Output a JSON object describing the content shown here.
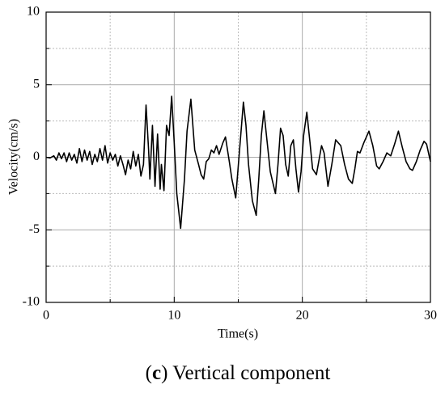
{
  "chart_data": {
    "type": "line",
    "xlabel": "Time(s)",
    "ylabel": "Velocity(cm/s)",
    "caption": [
      "(",
      "c",
      ") Vertical component"
    ],
    "x": [
      0,
      0.3,
      0.6,
      0.8,
      1.0,
      1.2,
      1.4,
      1.6,
      1.8,
      2.0,
      2.2,
      2.4,
      2.6,
      2.8,
      3.0,
      3.2,
      3.4,
      3.6,
      3.8,
      4.0,
      4.2,
      4.4,
      4.6,
      4.8,
      5.0,
      5.2,
      5.4,
      5.6,
      5.8,
      6.0,
      6.2,
      6.4,
      6.6,
      6.8,
      7.0,
      7.2,
      7.4,
      7.6,
      7.8,
      8.0,
      8.1,
      8.3,
      8.5,
      8.7,
      8.9,
      9.0,
      9.2,
      9.4,
      9.6,
      9.8,
      10.0,
      10.2,
      10.5,
      10.8,
      11.0,
      11.3,
      11.6,
      11.9,
      12.1,
      12.3,
      12.5,
      12.7,
      12.9,
      13.1,
      13.3,
      13.5,
      13.8,
      14.0,
      14.3,
      14.5,
      14.8,
      15.1,
      15.4,
      15.6,
      15.8,
      16.1,
      16.4,
      16.6,
      16.8,
      17.0,
      17.2,
      17.5,
      17.9,
      18.1,
      18.3,
      18.5,
      18.7,
      18.9,
      19.1,
      19.3,
      19.5,
      19.7,
      19.9,
      20.1,
      20.35,
      20.6,
      20.8,
      21.1,
      21.3,
      21.5,
      21.7,
      22.0,
      22.3,
      22.6,
      22.8,
      23.0,
      23.3,
      23.6,
      23.9,
      24.1,
      24.3,
      24.5,
      24.8,
      25.2,
      25.5,
      25.8,
      26.0,
      26.3,
      26.6,
      26.9,
      27.2,
      27.5,
      27.8,
      28.1,
      28.4,
      28.6,
      28.9,
      29.2,
      29.5,
      29.7,
      30.0
    ],
    "series": [
      {
        "name": "Velocity",
        "color": "#000000",
        "values": [
          0,
          -0.05,
          0.1,
          -0.2,
          0.3,
          -0.1,
          0.3,
          -0.3,
          0.3,
          -0.2,
          0.2,
          -0.4,
          0.6,
          -0.3,
          0.5,
          -0.2,
          0.4,
          -0.5,
          0.2,
          -0.3,
          0.6,
          -0.2,
          0.8,
          -0.4,
          0.3,
          -0.2,
          0.2,
          -0.6,
          0.1,
          -0.5,
          -1.2,
          -0.2,
          -0.8,
          0.4,
          -0.6,
          0.2,
          -1.3,
          -0.5,
          3.6,
          0.5,
          -1.5,
          2.2,
          -2.0,
          1.6,
          -2.2,
          -0.5,
          -2.3,
          2.2,
          1.5,
          4.2,
          1.0,
          -2.5,
          -4.9,
          -1.5,
          1.8,
          4.0,
          0.5,
          -0.5,
          -1.2,
          -1.5,
          -0.3,
          -0.1,
          0.5,
          0.3,
          0.8,
          0.2,
          1.0,
          1.4,
          -0.3,
          -1.5,
          -2.8,
          0.5,
          3.8,
          2.2,
          -0.5,
          -3.0,
          -4.0,
          -1.5,
          1.5,
          3.2,
          1.5,
          -1.0,
          -2.5,
          -0.5,
          2.0,
          1.5,
          -0.5,
          -1.3,
          0.8,
          1.2,
          -0.8,
          -2.4,
          -1.0,
          1.5,
          3.1,
          1.0,
          -0.8,
          -1.2,
          -0.2,
          0.8,
          0.3,
          -2.0,
          -0.5,
          1.2,
          1.0,
          0.8,
          -0.5,
          -1.5,
          -1.8,
          -0.8,
          0.4,
          0.3,
          1.0,
          1.8,
          0.8,
          -0.6,
          -0.8,
          -0.3,
          0.3,
          0.1,
          0.9,
          1.8,
          0.7,
          -0.3,
          -0.8,
          -0.9,
          -0.3,
          0.5,
          1.1,
          0.9,
          -0.3
        ]
      }
    ],
    "xlim": [
      0,
      30
    ],
    "xticks": [
      0,
      10,
      20,
      30
    ],
    "xminorticks": [
      5,
      15,
      25
    ],
    "ylim": [
      -10,
      10
    ],
    "yticks": [
      -10,
      -5,
      0,
      5,
      10
    ],
    "yminorticks": [
      -7.5,
      -2.5,
      2.5,
      7.5
    ],
    "grid": true
  }
}
